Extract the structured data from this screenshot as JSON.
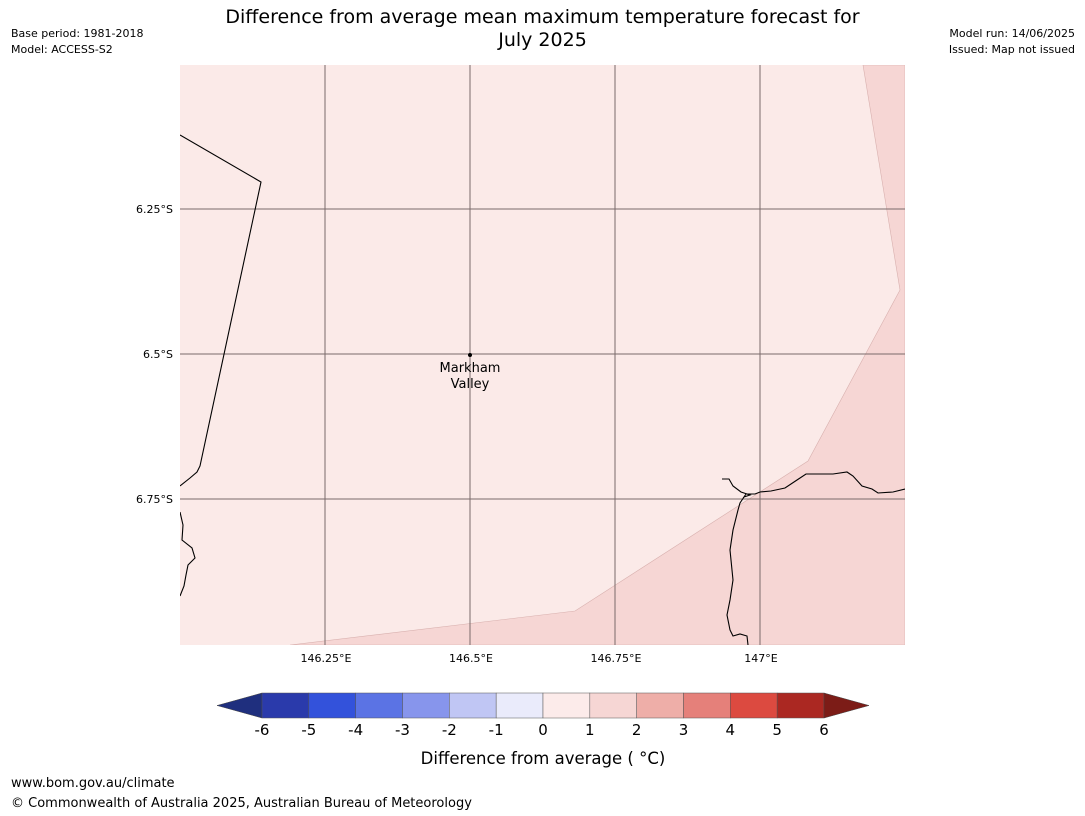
{
  "header": {
    "title_line1": "Difference from average mean maximum temperature forecast for",
    "title_line2": "July 2025",
    "base_period": "Base period: 1981-2018",
    "model": "Model: ACCESS-S2",
    "model_run": "Model run: 14/06/2025",
    "issued": "Issued: Map not issued"
  },
  "map": {
    "latitude_labels": [
      "6.25°S",
      "6.5°S",
      "6.75°S"
    ],
    "longitude_labels": [
      "146.25°E",
      "146.5°E",
      "146.75°E",
      "147°E"
    ],
    "place": {
      "name_line1": "Markham",
      "name_line2": "Valley"
    },
    "region_colors": {
      "category_0_to_1": "#fbeae8",
      "category_1_to_2": "#f6d6d4"
    },
    "gridline_color": "#7a6a6a",
    "coastline_color": "#000000"
  },
  "colorbar": {
    "title": "Difference from average ( °C)",
    "tick_labels": [
      "-6",
      "-5",
      "-4",
      "-3",
      "-2",
      "-1",
      "0",
      "1",
      "2",
      "3",
      "4",
      "5",
      "6"
    ],
    "low_extend_color": "#1f2f7e",
    "high_extend_color": "#7c1c17",
    "colors": [
      "#2a3aab",
      "#3352db",
      "#5b73e4",
      "#8795ec",
      "#c0c6f4",
      "#eaebfb",
      "#fcebea",
      "#f6d6d4",
      "#eeaea8",
      "#e5807a",
      "#dc4a40",
      "#ab2822"
    ]
  },
  "footer": {
    "website": "www.bom.gov.au/climate",
    "copyright": "© Commonwealth of Australia 2025, Australian Bureau of Meteorology"
  }
}
